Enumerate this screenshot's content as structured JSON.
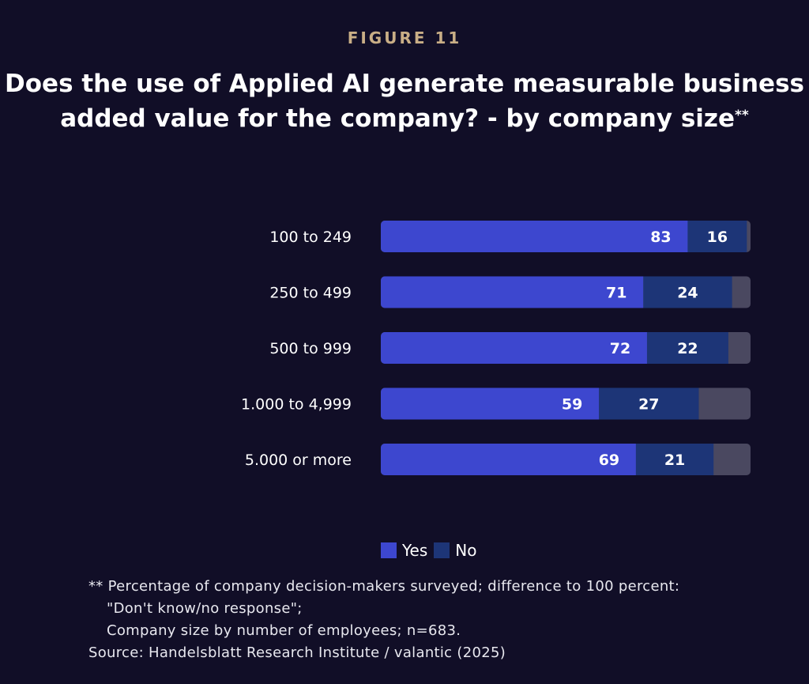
{
  "figure_label": "FIGURE 11",
  "title_main": "Does the use of Applied AI generate measurable business added value for the company? - by company size",
  "title_mark": "**",
  "chart_data": {
    "type": "bar",
    "orientation": "horizontal",
    "stacked": true,
    "categories": [
      "100 to 249",
      "250 to 499",
      "500 to 999",
      "1.000 to 4,999",
      "5.000 or more"
    ],
    "series": [
      {
        "name": "Yes",
        "values": [
          83,
          71,
          72,
          59,
          69
        ],
        "color": "#3d47cf"
      },
      {
        "name": "No",
        "values": [
          16,
          24,
          22,
          27,
          21
        ],
        "color": "#1d3577"
      }
    ],
    "remainder_color": "#4a4860",
    "xlim": [
      0,
      100
    ],
    "legend_position": "bottom"
  },
  "legend": {
    "yes": "Yes",
    "no": "No"
  },
  "footnote": {
    "line1": "** Percentage of company decision-makers surveyed; difference to 100 percent:",
    "line2": "\"Don't know/no response\";",
    "line3": "Company size by number of employees; n=683.",
    "source": "Source: Handelsblatt Research Institute / valantic (2025)"
  }
}
